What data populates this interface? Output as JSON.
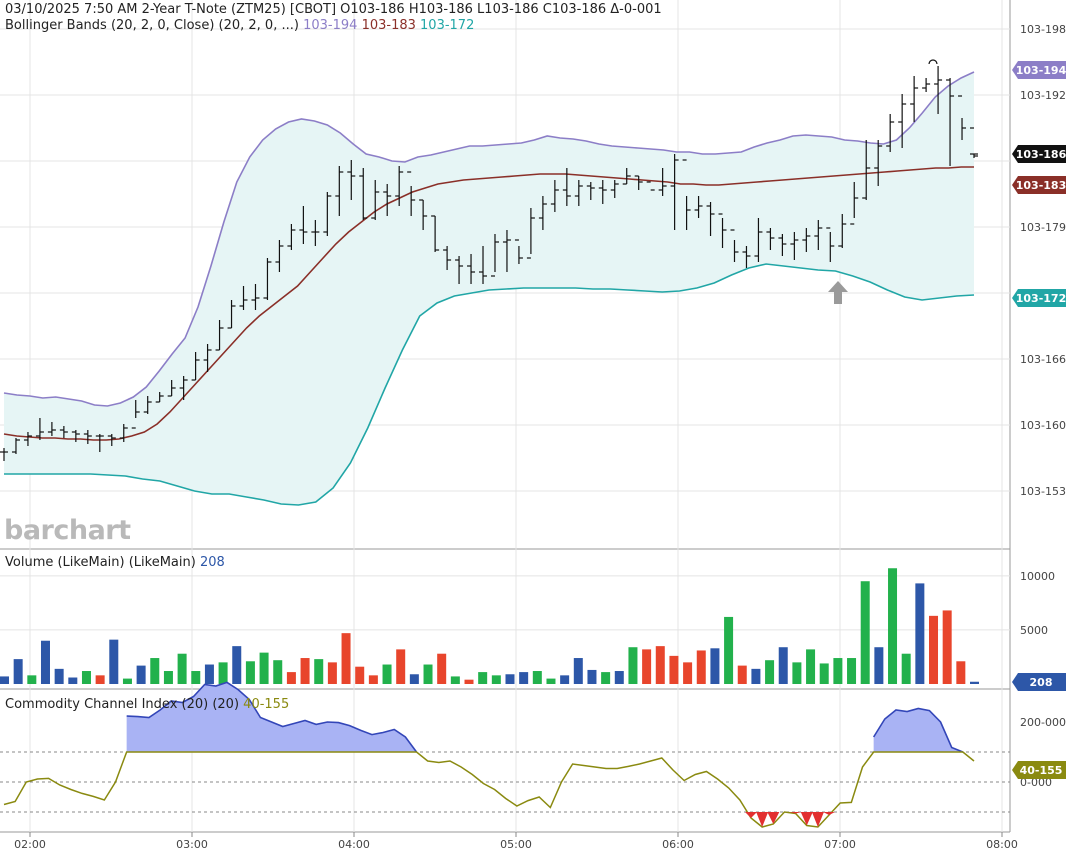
{
  "header": {
    "line1": "03/10/2025 7:50 AM 2-Year T-Note (ZTM25) [CBOT] O103-186 H103-186 L103-186 C103-186 Δ-0-001",
    "bb_label": "Bollinger Bands (20, 2, 0, Close)  (20, 2, 0, ...)",
    "bb_upper": "103-194",
    "bb_mid": "103-183",
    "bb_lower": "103-172",
    "vol_label": "Volume (LikeMain)  (LikeMain)",
    "vol_value": "208",
    "cci_label": "Commodity Channel Index (20)  (20)",
    "cci_value": "40-155"
  },
  "watermark": "barchart",
  "colors": {
    "upper": "#8c7ec7",
    "middle": "#8a2f28",
    "lower": "#21a6a6",
    "band_fill": "#e6f5f5",
    "vol_up": "#22b14c",
    "vol_down": "#e8452c",
    "vol_neutral": "#2d57a8",
    "cci_line": "#8a8a10",
    "cci_high_fill": "#a9b3f4",
    "cci_high_line": "#3346b8",
    "cci_low": "#e23030",
    "tag_last": "#111111",
    "grid": "#e4e4e4",
    "arrow": "#9a9a9a"
  },
  "chart_data": [
    {
      "type": "line",
      "subtype": "ohlc-bars-with-bollinger",
      "title": "2-Year T-Note (ZTM25) [CBOT]",
      "price_ticks": [
        "103-198",
        "103-192",
        "103-179",
        "103-166",
        "103-160",
        "103-153"
      ],
      "last_price_tag": "103-186",
      "upper_tag": "103-194",
      "middle_tag": "103-183",
      "lower_tag": "103-172",
      "x_ticks": [
        "02:00",
        "03:00",
        "04:00",
        "05:00",
        "06:00",
        "07:00",
        "08:00"
      ],
      "x_tick_minutes": [
        120,
        180,
        240,
        300,
        360,
        420,
        480
      ],
      "x_range_minutes": [
        90,
        490
      ],
      "ylim": [
        50,
        860
      ],
      "bar_interval_minutes": 5,
      "start_minute": 90,
      "bars": [
        [
          448,
          461,
          452
        ],
        [
          438,
          454,
          440
        ],
        [
          432,
          446,
          436
        ],
        [
          418,
          440,
          432
        ],
        [
          422,
          436,
          430
        ],
        [
          426,
          438,
          432
        ],
        [
          430,
          442,
          434
        ],
        [
          430,
          444,
          436
        ],
        [
          434,
          452,
          436
        ],
        [
          434,
          446,
          438
        ],
        [
          424,
          442,
          428
        ],
        [
          400,
          418,
          412
        ],
        [
          396,
          414,
          402
        ],
        [
          392,
          402,
          396
        ],
        [
          380,
          396,
          388
        ],
        [
          376,
          400,
          380
        ],
        [
          352,
          380,
          360
        ],
        [
          344,
          372,
          350
        ],
        [
          320,
          350,
          328
        ],
        [
          300,
          328,
          306
        ],
        [
          286,
          310,
          300
        ],
        [
          284,
          310,
          298
        ],
        [
          258,
          300,
          262
        ],
        [
          240,
          272,
          246
        ],
        [
          224,
          250,
          230
        ],
        [
          206,
          244,
          232
        ],
        [
          220,
          246,
          232
        ],
        [
          192,
          236,
          196
        ],
        [
          166,
          216,
          172
        ],
        [
          160,
          200,
          176
        ],
        [
          168,
          220,
          218
        ],
        [
          180,
          220,
          192
        ],
        [
          184,
          216,
          196
        ],
        [
          166,
          206,
          172
        ],
        [
          186,
          216,
          200
        ],
        [
          200,
          230,
          216
        ],
        [
          216,
          252,
          250
        ],
        [
          246,
          270,
          260
        ],
        [
          256,
          284,
          266
        ],
        [
          254,
          284,
          272
        ],
        [
          246,
          284,
          276
        ],
        [
          234,
          272,
          242
        ],
        [
          230,
          272,
          240
        ],
        [
          246,
          264,
          258
        ],
        [
          208,
          254,
          218
        ],
        [
          196,
          230,
          204
        ],
        [
          180,
          212,
          190
        ],
        [
          168,
          206,
          196
        ],
        [
          180,
          206,
          186
        ],
        [
          182,
          200,
          188
        ],
        [
          180,
          204,
          190
        ],
        [
          180,
          198,
          184
        ],
        [
          168,
          184,
          176
        ],
        [
          176,
          190,
          182
        ],
        [
          190,
          190,
          190
        ],
        [
          168,
          196,
          186
        ],
        [
          154,
          230,
          160
        ],
        [
          196,
          230,
          210
        ],
        [
          196,
          218,
          206
        ],
        [
          202,
          236,
          214
        ],
        [
          218,
          248,
          230
        ],
        [
          240,
          262,
          252
        ],
        [
          246,
          268,
          256
        ],
        [
          218,
          262,
          232
        ],
        [
          228,
          250,
          238
        ],
        [
          234,
          256,
          244
        ],
        [
          232,
          260,
          240
        ],
        [
          228,
          252,
          236
        ],
        [
          220,
          250,
          228
        ],
        [
          232,
          262,
          246
        ],
        [
          214,
          248,
          224
        ],
        [
          182,
          218,
          198
        ],
        [
          140,
          200,
          168
        ],
        [
          140,
          186,
          146
        ],
        [
          114,
          152,
          122
        ],
        [
          94,
          148,
          104
        ],
        [
          76,
          122,
          88
        ],
        [
          78,
          92,
          84
        ],
        [
          66,
          114,
          80
        ],
        [
          78,
          166,
          96
        ],
        [
          118,
          140,
          128
        ],
        [
          154,
          158,
          156
        ]
      ],
      "upper_band": [
        393,
        395,
        396,
        398,
        397,
        399,
        401,
        405,
        406,
        403,
        397,
        387,
        371,
        354,
        338,
        307,
        266,
        222,
        182,
        157,
        140,
        129,
        122,
        119,
        121,
        125,
        133,
        144,
        154,
        157,
        161,
        162,
        157,
        155,
        152,
        149,
        146,
        146,
        145,
        144,
        143,
        140,
        136,
        138,
        139,
        141,
        144,
        146,
        147,
        148,
        149,
        150,
        152,
        152,
        154,
        154,
        153,
        152,
        147,
        143,
        140,
        136,
        135,
        136,
        137,
        140,
        141,
        143,
        144,
        140,
        128,
        113,
        97,
        86,
        78,
        72
      ],
      "middle_band": [
        434,
        436,
        437,
        438,
        438,
        439,
        439,
        440,
        440,
        439,
        436,
        432,
        424,
        412,
        398,
        384,
        370,
        356,
        342,
        328,
        316,
        306,
        296,
        286,
        272,
        258,
        244,
        232,
        222,
        212,
        204,
        198,
        192,
        188,
        184,
        182,
        180,
        179,
        178,
        177,
        176,
        175,
        174,
        174,
        174,
        175,
        176,
        177,
        178,
        179,
        180,
        181,
        182,
        184,
        184,
        185,
        185,
        184,
        183,
        182,
        181,
        180,
        179,
        178,
        177,
        176,
        175,
        174,
        173,
        172,
        171,
        170,
        169,
        168,
        168,
        167,
        167
      ],
      "lower_band": [
        474,
        474,
        474,
        474,
        474,
        474,
        475,
        476,
        479,
        481,
        486,
        491,
        494,
        494,
        497,
        500,
        504,
        505,
        502,
        488,
        463,
        428,
        388,
        350,
        316,
        303,
        296,
        293,
        290,
        289,
        288,
        288,
        288,
        288,
        289,
        289,
        290,
        291,
        292,
        291,
        288,
        283,
        275,
        268,
        264,
        266,
        268,
        270,
        271,
        276,
        282,
        290,
        297,
        300,
        298,
        296,
        295
      ],
      "annotations": [
        "up-arrow-near-07:00"
      ]
    },
    {
      "type": "bar",
      "title": "Volume (LikeMain)",
      "y_ticks": [
        10000,
        5000
      ],
      "ylim": [
        0,
        11000
      ],
      "last_value": 208,
      "volumes": [
        [
          700,
          "n"
        ],
        [
          2300,
          "n"
        ],
        [
          800,
          "u"
        ],
        [
          4000,
          "n"
        ],
        [
          1400,
          "n"
        ],
        [
          600,
          "n"
        ],
        [
          1200,
          "u"
        ],
        [
          800,
          "d"
        ],
        [
          4100,
          "n"
        ],
        [
          500,
          "u"
        ],
        [
          1700,
          "n"
        ],
        [
          2400,
          "u"
        ],
        [
          1200,
          "u"
        ],
        [
          2800,
          "u"
        ],
        [
          1200,
          "u"
        ],
        [
          1800,
          "n"
        ],
        [
          2000,
          "u"
        ],
        [
          3500,
          "n"
        ],
        [
          2100,
          "u"
        ],
        [
          2900,
          "u"
        ],
        [
          2200,
          "u"
        ],
        [
          1100,
          "d"
        ],
        [
          2400,
          "d"
        ],
        [
          2300,
          "u"
        ],
        [
          2000,
          "d"
        ],
        [
          4700,
          "d"
        ],
        [
          1600,
          "d"
        ],
        [
          800,
          "d"
        ],
        [
          1800,
          "u"
        ],
        [
          3200,
          "d"
        ],
        [
          900,
          "n"
        ],
        [
          1800,
          "u"
        ],
        [
          2800,
          "d"
        ],
        [
          700,
          "u"
        ],
        [
          400,
          "d"
        ],
        [
          1100,
          "u"
        ],
        [
          800,
          "u"
        ],
        [
          900,
          "n"
        ],
        [
          1100,
          "n"
        ],
        [
          1200,
          "u"
        ],
        [
          500,
          "u"
        ],
        [
          800,
          "n"
        ],
        [
          2400,
          "n"
        ],
        [
          1300,
          "n"
        ],
        [
          1100,
          "u"
        ],
        [
          1200,
          "n"
        ],
        [
          3400,
          "u"
        ],
        [
          3200,
          "d"
        ],
        [
          3500,
          "d"
        ],
        [
          2600,
          "d"
        ],
        [
          2000,
          "d"
        ],
        [
          3100,
          "d"
        ],
        [
          3300,
          "n"
        ],
        [
          6200,
          "u"
        ],
        [
          1700,
          "d"
        ],
        [
          1400,
          "n"
        ],
        [
          2200,
          "u"
        ],
        [
          3400,
          "n"
        ],
        [
          2000,
          "u"
        ],
        [
          3200,
          "u"
        ],
        [
          1900,
          "u"
        ],
        [
          2400,
          "u"
        ],
        [
          2400,
          "u"
        ],
        [
          9500,
          "u"
        ],
        [
          3400,
          "n"
        ],
        [
          10700,
          "u"
        ],
        [
          2800,
          "u"
        ],
        [
          9300,
          "n"
        ],
        [
          6300,
          "d"
        ],
        [
          6800,
          "d"
        ],
        [
          2100,
          "d"
        ],
        [
          208,
          "n"
        ]
      ]
    },
    {
      "type": "line",
      "title": "Commodity Channel Index (20)",
      "y_ticks": [
        "200-000",
        "0-000"
      ],
      "last_value": "40-155",
      "cci": [
        -75,
        -65,
        0,
        10,
        12,
        -10,
        -25,
        -38,
        -48,
        -60,
        0,
        220,
        218,
        215,
        240,
        270,
        265,
        285,
        325,
        320,
        332,
        308,
        275,
        215,
        200,
        185,
        195,
        205,
        192,
        200,
        198,
        188,
        172,
        158,
        165,
        175,
        150,
        100,
        70,
        65,
        70,
        50,
        25,
        -5,
        -25,
        -55,
        -80,
        -62,
        -50,
        -85,
        0,
        60,
        55,
        50,
        45,
        45,
        52,
        60,
        70,
        80,
        40,
        5,
        25,
        35,
        10,
        -20,
        -60,
        -120,
        -150,
        -140,
        -100,
        -105,
        -145,
        -150,
        -110,
        -70,
        -68,
        50,
        150,
        210,
        240,
        235,
        245,
        238,
        200,
        115,
        100,
        70
      ],
      "thresholds": [
        100,
        -100
      ]
    }
  ]
}
